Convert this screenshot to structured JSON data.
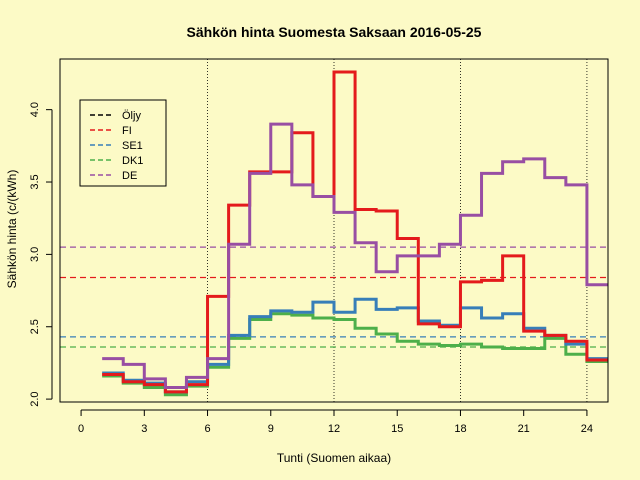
{
  "chart_data": {
    "type": "line",
    "step": true,
    "title": "Sähkön hinta Suomesta Saksaan 2016-05-25",
    "xlabel": "Tunti (Suomen aikaa)",
    "ylabel": "Sähkön hinta (c/(kWh)",
    "xlim": [
      -1,
      25
    ],
    "ylim": [
      1.98,
      4.35
    ],
    "x_ticks": [
      0,
      3,
      6,
      9,
      12,
      15,
      18,
      21,
      24
    ],
    "y_ticks": [
      2.0,
      2.5,
      3.0,
      3.5,
      4.0
    ],
    "y_tick_labels": [
      "2.0",
      "2.5",
      "3.0",
      "3.5",
      "4.0"
    ],
    "vlines": [
      6,
      12,
      18,
      24
    ],
    "legend_position": "top-left",
    "legend": [
      {
        "name": "Öljy",
        "color": "#000000"
      },
      {
        "name": "FI",
        "color": "#e41a1c"
      },
      {
        "name": "SE1",
        "color": "#377eb8"
      },
      {
        "name": "DK1",
        "color": "#4daf4a"
      },
      {
        "name": "DE",
        "color": "#984ea3"
      }
    ],
    "hlines": [
      {
        "series": "FI",
        "y": 2.84,
        "color": "#e41a1c"
      },
      {
        "series": "SE1",
        "y": 2.43,
        "color": "#377eb8"
      },
      {
        "series": "DK1",
        "y": 2.36,
        "color": "#4daf4a"
      },
      {
        "series": "DE",
        "y": 3.05,
        "color": "#984ea3"
      }
    ],
    "x": [
      1,
      2,
      3,
      4,
      5,
      6,
      7,
      8,
      9,
      10,
      11,
      12,
      13,
      14,
      15,
      16,
      17,
      18,
      19,
      20,
      21,
      22,
      23,
      24,
      25
    ],
    "series": [
      {
        "name": "FI",
        "color": "#e41a1c",
        "values": [
          2.17,
          2.12,
          2.1,
          2.05,
          2.1,
          2.71,
          3.34,
          3.57,
          3.57,
          3.84,
          3.4,
          4.26,
          3.31,
          3.3,
          3.11,
          2.52,
          2.5,
          2.81,
          2.82,
          2.99,
          2.47,
          2.44,
          2.4,
          2.27,
          2.27
        ]
      },
      {
        "name": "SE1",
        "color": "#377eb8",
        "values": [
          2.18,
          2.13,
          2.11,
          2.05,
          2.12,
          2.24,
          2.44,
          2.57,
          2.61,
          2.6,
          2.67,
          2.6,
          2.69,
          2.62,
          2.63,
          2.54,
          2.51,
          2.63,
          2.56,
          2.59,
          2.49,
          2.44,
          2.38,
          2.28,
          2.28
        ]
      },
      {
        "name": "DK1",
        "color": "#4daf4a",
        "values": [
          2.16,
          2.11,
          2.08,
          2.03,
          2.09,
          2.22,
          2.42,
          2.55,
          2.59,
          2.58,
          2.56,
          2.55,
          2.49,
          2.45,
          2.4,
          2.38,
          2.37,
          2.38,
          2.36,
          2.35,
          2.35,
          2.42,
          2.31,
          2.26,
          2.26
        ]
      },
      {
        "name": "DE",
        "color": "#984ea3",
        "values": [
          2.28,
          2.24,
          2.14,
          2.08,
          2.15,
          2.28,
          3.07,
          3.56,
          3.9,
          3.48,
          3.4,
          3.29,
          3.08,
          2.88,
          2.99,
          2.99,
          3.07,
          3.27,
          3.56,
          3.64,
          3.66,
          3.53,
          3.48,
          2.79,
          2.79
        ]
      }
    ]
  }
}
